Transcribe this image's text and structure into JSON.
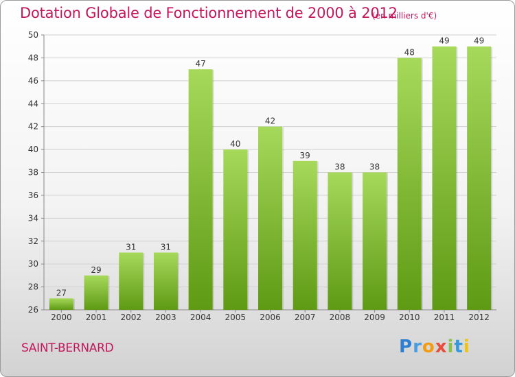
{
  "colors": {
    "title": "#c2185b",
    "bar_light": "#a6d95a",
    "bar_dark": "#5e9a14",
    "axis": "#888888",
    "grid": "#d0d0d0"
  },
  "header": {
    "title": "Dotation Globale de Fonctionnement de 2000 à 2012",
    "unit": "(en milliers d'€)"
  },
  "footer": {
    "commune": "SAINT-BERNARD",
    "brand_letters": [
      {
        "ch": "P",
        "color": "#2e7fd1"
      },
      {
        "ch": "r",
        "color": "#4a9de0"
      },
      {
        "ch": "o",
        "color": "#f39c12"
      },
      {
        "ch": "x",
        "color": "#e74c3c"
      },
      {
        "ch": "i",
        "color": "#8bc34a"
      },
      {
        "ch": "t",
        "color": "#3498db"
      },
      {
        "ch": "i",
        "color": "#f1c40f"
      }
    ]
  },
  "chart_data": {
    "type": "bar",
    "categories": [
      "2000",
      "2001",
      "2002",
      "2003",
      "2004",
      "2005",
      "2006",
      "2007",
      "2008",
      "2009",
      "2010",
      "2011",
      "2012"
    ],
    "values": [
      27,
      29,
      31,
      31,
      47,
      40,
      42,
      39,
      38,
      38,
      48,
      49,
      49
    ],
    "ylim": [
      26,
      50
    ],
    "yticks": [
      26,
      28,
      30,
      32,
      34,
      36,
      38,
      40,
      42,
      44,
      46,
      48,
      50
    ],
    "grid": true,
    "legend": "none"
  }
}
